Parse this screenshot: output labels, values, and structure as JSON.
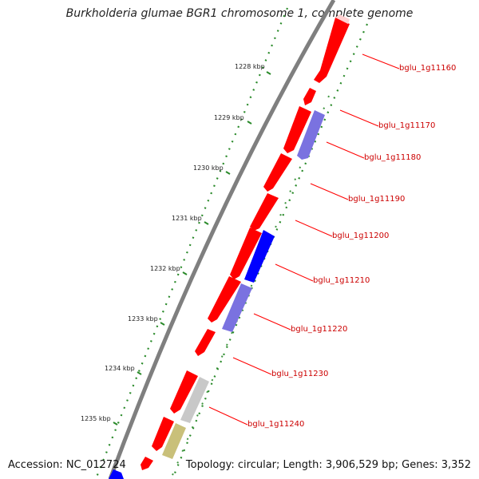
{
  "title": "Burkholderia glumae BGR1 chromosome 1, complete genome",
  "footer": {
    "accession": "Accession: NC_012724",
    "summary": "Topology: circular; Length: 3,906,529 bp; Genes: 3,352"
  },
  "colors": {
    "forward_cds": "#ff0000",
    "reverse_cds": "#0000ff",
    "reverse_cds_light": "#7a72e0",
    "other_feature": "#c8c8c8",
    "olive_feature": "#c9c07a",
    "backbone": "#7f7f7f",
    "scale_ticks": "#2a8a2a",
    "gene_labels": "#cc0000"
  },
  "scale_labels": [
    "1228 kbp",
    "1229 kbp",
    "1230 kbp",
    "1231 kbp",
    "1232 kbp",
    "1233 kbp",
    "1234 kbp",
    "1235 kbp"
  ],
  "gene_labels": [
    "bglu_1g11160",
    "bglu_1g11170",
    "bglu_1g11180",
    "bglu_1g11190",
    "bglu_1g11200",
    "bglu_1g11210",
    "bglu_1g11220",
    "bglu_1g11230",
    "bglu_1g11240"
  ]
}
